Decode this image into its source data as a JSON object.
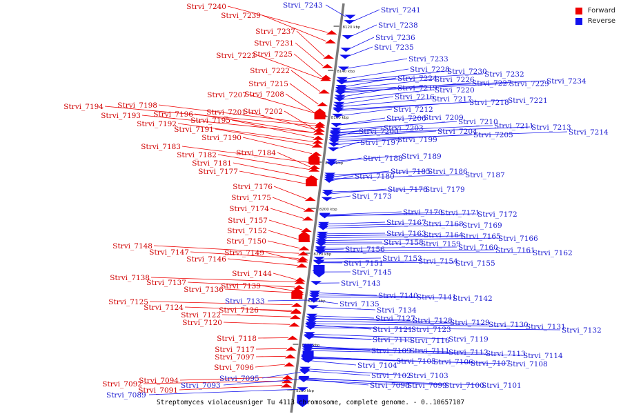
{
  "legend": {
    "forward": "Forward",
    "reverse": "Reverse",
    "forward_color": "#ee0000",
    "reverse_color": "#1111ee"
  },
  "caption": "Streptomyces violaceusniger Tu 4113 chromosome, complete genome. - 0..10657107",
  "ticks": [
    "8120 kbp",
    "8140 kbp",
    "8160 kbp",
    "8180 kbp",
    "8200 kbp",
    "8220 kbp",
    "8240 kbp",
    "8260 kbp",
    "8280 kbp"
  ],
  "forward_genes": [
    "Strvi_7240",
    "Strvi_7239",
    "Strvi_7237",
    "Strvi_7231",
    "Strvi_7225",
    "Strvi_7223",
    "Strvi_7222",
    "Strvi_7215",
    "Strvi_7208",
    "Strvi_7207",
    "Strvi_7198",
    "Strvi_7194",
    "Strvi_7201",
    "Strvi_7202",
    "Strvi_7196",
    "Strvi_7193",
    "Strvi_7195",
    "Strvi_7192",
    "Strvi_7191",
    "Strvi_7190",
    "Strvi_7183",
    "Strvi_7184",
    "Strvi_7182",
    "Strvi_7181",
    "Strvi_7177",
    "Strvi_7176",
    "Strvi_7175",
    "Strvi_7174",
    "Strvi_7157",
    "Strvi_7152",
    "Strvi_7150",
    "Strvi_7148",
    "Strvi_7149",
    "Strvi_7147",
    "Strvi_7146",
    "Strvi_7144",
    "Strvi_7138",
    "Strvi_7137",
    "Strvi_7139",
    "Strvi_7136",
    "Strvi_7125",
    "Strvi_7124",
    "Strvi_7126",
    "Strvi_7122",
    "Strvi_7120",
    "Strvi_7118",
    "Strvi_7117",
    "Strvi_7097",
    "Strvi_7096",
    "Strvi_7094",
    "Strvi_7092",
    "Strvi_7091"
  ],
  "reverse_genes": [
    "Strvi_7243",
    "Strvi_7241",
    "Strvi_7238",
    "Strvi_7236",
    "Strvi_7235",
    "Strvi_7233",
    "Strvi_7228",
    "Strvi_7230",
    "Strvi_7232",
    "Strvi_7224",
    "Strvi_7226",
    "Strvi_7227",
    "Strvi_7229",
    "Strvi_7234",
    "Strvi_7219",
    "Strvi_7220",
    "Strvi_7216",
    "Strvi_7217",
    "Strvi_7218",
    "Strvi_7221",
    "Strvi_7212",
    "Strvi_7206",
    "Strvi_7209",
    "Strvi_7210",
    "Strvi_7203",
    "Strvi_7211",
    "Strvi_7213",
    "Strvi_7214",
    "Strvi_7200",
    "Strvi_7204",
    "Strvi_7205",
    "Strvi_7197",
    "Strvi_7199",
    "Strvi_7189",
    "Strvi_7188",
    "Strvi_7185",
    "Strvi_7186",
    "Strvi_7187",
    "Strvi_7180",
    "Strvi_7178",
    "Strvi_7179",
    "Strvi_7173",
    "Strvi_7170",
    "Strvi_7171",
    "Strvi_7172",
    "Strvi_7167",
    "Strvi_7168",
    "Strvi_7169",
    "Strvi_7163",
    "Strvi_7164",
    "Strvi_7165",
    "Strvi_7166",
    "Strvi_7158",
    "Strvi_7159",
    "Strvi_7160",
    "Strvi_7161",
    "Strvi_7162",
    "Strvi_7156",
    "Strvi_7153",
    "Strvi_7154",
    "Strvi_7155",
    "Strvi_7151",
    "Strvi_7145",
    "Strvi_7143",
    "Strvi_7140",
    "Strvi_7141",
    "Strvi_7142",
    "Strvi_7133",
    "Strvi_7135",
    "Strvi_7134",
    "Strvi_7127",
    "Strvi_7128",
    "Strvi_7129",
    "Strvi_7130",
    "Strvi_7131",
    "Strvi_7132",
    "Strvi_7121",
    "Strvi_7123",
    "Strvi_7115",
    "Strvi_7116",
    "Strvi_7119",
    "Strvi_7109",
    "Strvi_7111",
    "Strvi_7112",
    "Strvi_7113",
    "Strvi_7114",
    "Strvi_7105",
    "Strvi_7106",
    "Strvi_7107",
    "Strvi_7108",
    "Strvi_7104",
    "Strvi_7102",
    "Strvi_7103",
    "Strvi_7095",
    "Strvi_7098",
    "Strvi_7099",
    "Strvi_7100",
    "Strvi_7101",
    "Strvi_7093",
    "Strvi_7089"
  ]
}
